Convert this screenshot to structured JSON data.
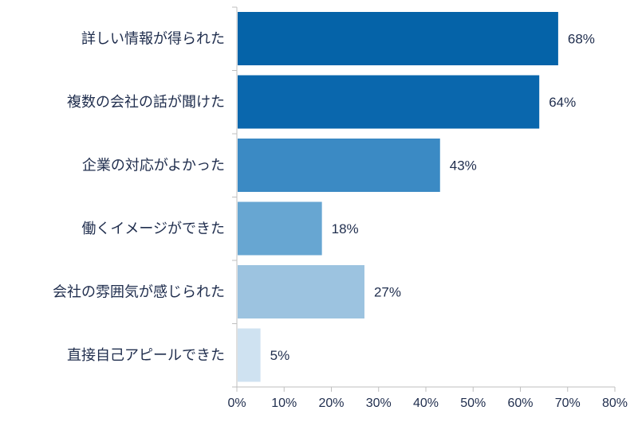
{
  "chart_data": {
    "type": "bar",
    "orientation": "horizontal",
    "title": "",
    "xlabel": "",
    "ylabel": "",
    "xlim": [
      0,
      80
    ],
    "tick_step": 10,
    "tick_suffix": "%",
    "grid": false,
    "categories": [
      "詳しい情報が得られた",
      "複数の会社の話が聞けた",
      "企業の対応がよかった",
      "働くイメージができた",
      "会社の雰囲気が感じられた",
      "直接自己アピールできた"
    ],
    "values": [
      68,
      64,
      43,
      18,
      27,
      5
    ],
    "value_labels": [
      "68%",
      "64%",
      "43%",
      "18%",
      "27%",
      "5%"
    ],
    "colors": [
      "#0563a8",
      "#0a67ad",
      "#3b8ac4",
      "#67a6d2",
      "#9cc3e0",
      "#cfe2f1"
    ]
  }
}
